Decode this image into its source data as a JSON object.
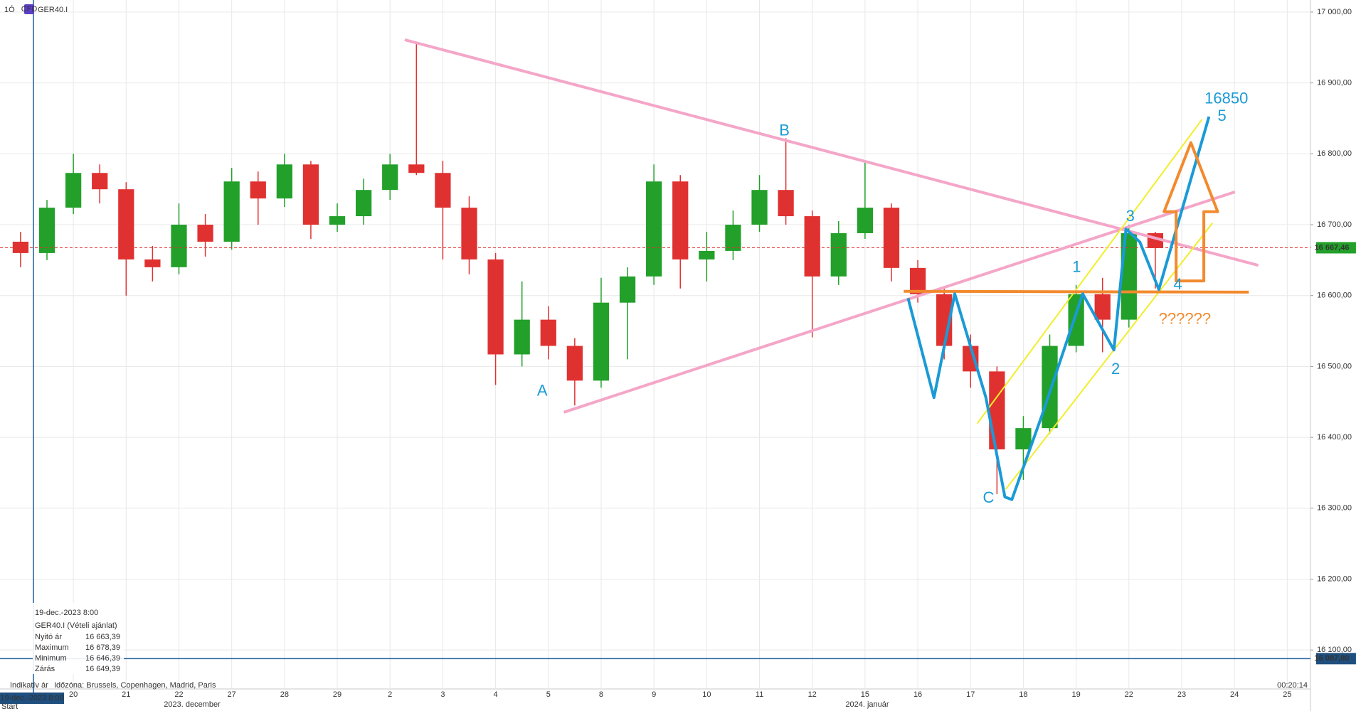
{
  "header": {
    "timeframe": "1Ó",
    "badge": "CFD",
    "symbol": "GER40.I"
  },
  "chart_data": {
    "type": "candlestick",
    "x": [
      -1,
      -0.5,
      0,
      0.5,
      1,
      1.5,
      2,
      2.5,
      3,
      3.5,
      4,
      4.5,
      5,
      5.5,
      6,
      6.5,
      7,
      7.5,
      8,
      8.5,
      9,
      9.5,
      10,
      10.5,
      11,
      11.5,
      12,
      12.5,
      13,
      13.5,
      14,
      14.5,
      15,
      15.5,
      16,
      16.5,
      17,
      17.5,
      18,
      18.5,
      19,
      19.5,
      20,
      20.5
    ],
    "open": [
      16676,
      16660,
      16724,
      16773,
      16750,
      16651,
      16640,
      16700,
      16676,
      16761,
      16737,
      16785,
      16700,
      16712,
      16749,
      16785,
      16773,
      16724,
      16651,
      16517,
      16566,
      16529,
      16480,
      16590,
      16627,
      16761,
      16651,
      16663,
      16700,
      16749,
      16712,
      16627,
      16688,
      16724,
      16639,
      16602,
      16529,
      16493,
      16383,
      16413,
      16529,
      16602,
      16566,
      16688
    ],
    "high": [
      16690,
      16735,
      16800,
      16785,
      16760,
      16670,
      16730,
      16715,
      16780,
      16775,
      16800,
      16790,
      16730,
      16765,
      16800,
      16958,
      16790,
      16740,
      16660,
      16620,
      16585,
      16540,
      16625,
      16640,
      16785,
      16770,
      16690,
      16720,
      16770,
      16822,
      16720,
      16705,
      16790,
      16730,
      16650,
      16610,
      16545,
      16500,
      16430,
      16545,
      16615,
      16625,
      16700,
      16690
    ],
    "low": [
      16640,
      16650,
      16715,
      16730,
      16600,
      16620,
      16630,
      16655,
      16665,
      16700,
      16725,
      16680,
      16690,
      16700,
      16735,
      16770,
      16651,
      16630,
      16474,
      16500,
      16510,
      16445,
      16470,
      16510,
      16615,
      16610,
      16620,
      16650,
      16690,
      16700,
      16541,
      16615,
      16680,
      16620,
      16590,
      16510,
      16470,
      16320,
      16340,
      16405,
      16520,
      16520,
      16555,
      16610
    ],
    "close": [
      16660,
      16724,
      16773,
      16750,
      16651,
      16640,
      16700,
      16676,
      16761,
      16737,
      16785,
      16700,
      16712,
      16749,
      16785,
      16773,
      16724,
      16651,
      16517,
      16566,
      16529,
      16480,
      16590,
      16627,
      16761,
      16651,
      16663,
      16700,
      16749,
      16712,
      16627,
      16688,
      16724,
      16639,
      16602,
      16529,
      16493,
      16383,
      16413,
      16529,
      16602,
      16566,
      16688,
      16667
    ],
    "up_color": "#22a02a",
    "down_color": "#e03131",
    "xlim": [
      -1.39,
      23.44
    ],
    "ylim": [
      16045,
      17017
    ],
    "grid": true,
    "xticks": [
      {
        "value": 0,
        "label": "20"
      },
      {
        "value": 1,
        "label": "21"
      },
      {
        "value": 2,
        "label": "22"
      },
      {
        "value": 3,
        "label": "27"
      },
      {
        "value": 4,
        "label": "28"
      },
      {
        "value": 5,
        "label": "29"
      },
      {
        "value": 6,
        "label": "2"
      },
      {
        "value": 7,
        "label": "3"
      },
      {
        "value": 8,
        "label": "4"
      },
      {
        "value": 9,
        "label": "5"
      },
      {
        "value": 10,
        "label": "8"
      },
      {
        "value": 11,
        "label": "9"
      },
      {
        "value": 12,
        "label": "10"
      },
      {
        "value": 13,
        "label": "11"
      },
      {
        "value": 14,
        "label": "12"
      },
      {
        "value": 15,
        "label": "15"
      },
      {
        "value": 16,
        "label": "16"
      },
      {
        "value": 17,
        "label": "17"
      },
      {
        "value": 18,
        "label": "18"
      },
      {
        "value": 19,
        "label": "19"
      },
      {
        "value": 20,
        "label": "22"
      },
      {
        "value": 21,
        "label": "23"
      },
      {
        "value": 22,
        "label": "24"
      },
      {
        "value": 23,
        "label": "25"
      }
    ],
    "month_labels": [
      "2023. december",
      "2024. január"
    ],
    "yticks": [
      {
        "value": 16100,
        "label": "16 100,00"
      },
      {
        "value": 16200,
        "label": "16 200,00"
      },
      {
        "value": 16300,
        "label": "16 300,00"
      },
      {
        "value": 16400,
        "label": "16 400,00"
      },
      {
        "value": 16500,
        "label": "16 500,00"
      },
      {
        "value": 16600,
        "label": "16 600,00"
      },
      {
        "value": 16700,
        "label": "16 700,00"
      },
      {
        "value": 16800,
        "label": "16 800,00"
      },
      {
        "value": 16900,
        "label": "16 900,00"
      },
      {
        "value": 17000,
        "label": "17 000,00"
      }
    ],
    "price_line": {
      "value": 16667.46,
      "label": "16 667,46"
    },
    "low_line": {
      "value": 16087.8,
      "label": "16 087,80"
    },
    "annotations": [
      "A",
      "B",
      "C",
      "1",
      "2",
      "3",
      "4",
      "5",
      "16850",
      "??????"
    ]
  },
  "tooltip": {
    "time": "19-dec.-2023 8:00",
    "instrument": "GER40.I (Vételi ajánlat)",
    "rows": [
      {
        "label": "Nyitó ár",
        "value": "16 663,39"
      },
      {
        "label": "Maximum",
        "value": "16 678,39"
      },
      {
        "label": "Minimum",
        "value": "16 646,39"
      },
      {
        "label": "Zárás",
        "value": "16 649,39"
      }
    ]
  },
  "footer": {
    "price_type": "Indikatív ár",
    "timezone": "Időzóna: Brussels, Copenhagen, Madrid, Paris",
    "cursor_time": "19-dec.-2023 8:00",
    "start": "Start",
    "countdown": "00:20:14"
  }
}
